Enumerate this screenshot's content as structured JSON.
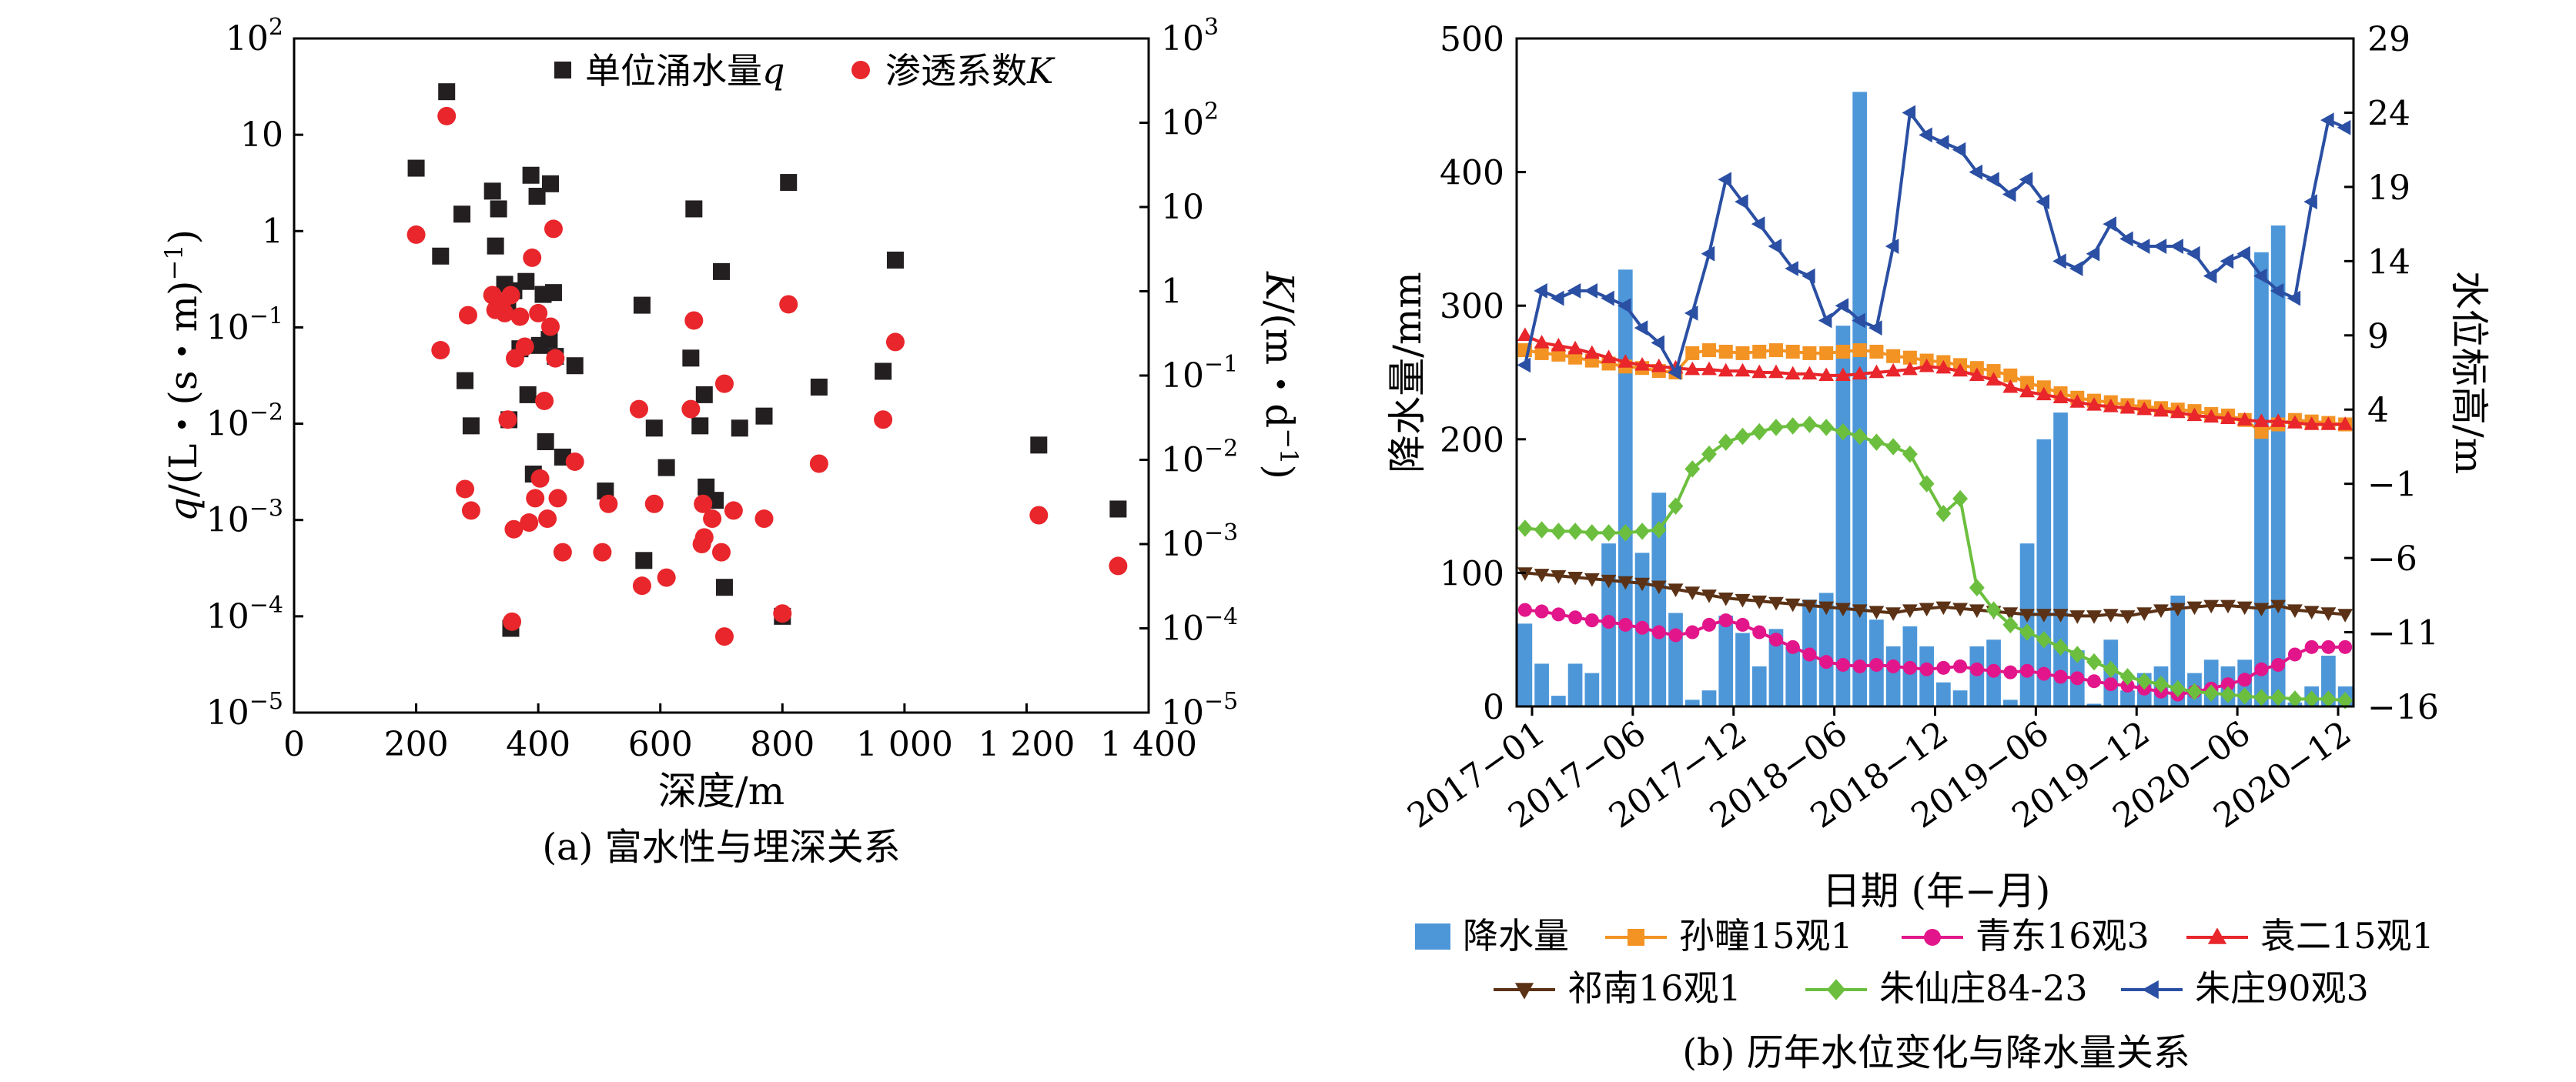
{
  "panels": [
    {
      "caption": "(a) 富水性与埋深关系",
      "legend": [
        {
          "label": "单位涌水量",
          "italic": "q",
          "marker": "square",
          "color": "#231f20"
        },
        {
          "label": "渗透系数",
          "italic": "K",
          "marker": "circle",
          "color": "#e8262b"
        }
      ],
      "xlabel": "深度/m",
      "ylabel_left": {
        "italic": "q",
        "rest": "/(L・(s・m)",
        "sup": "−1",
        "close": ")"
      },
      "ylabel_right": {
        "italic": "K",
        "rest": "/(m・d",
        "sup": "−1",
        "close": ")"
      },
      "x_ticks": [
        "0",
        "200",
        "400",
        "600",
        "800",
        "1 000",
        "1 200",
        "1 400"
      ],
      "y_left_ticks": [
        {
          "base": "10",
          "exp": "−5"
        },
        {
          "base": "10",
          "exp": "−4"
        },
        {
          "base": "10",
          "exp": "−3"
        },
        {
          "base": "10",
          "exp": "−2"
        },
        {
          "base": "10",
          "exp": "−1"
        },
        {
          "base": "1",
          "exp": ""
        },
        {
          "base": "10",
          "exp": ""
        },
        {
          "base": "10",
          "exp": "2"
        }
      ],
      "y_right_ticks": [
        {
          "base": "10",
          "exp": "−5"
        },
        {
          "base": "10",
          "exp": "−4"
        },
        {
          "base": "10",
          "exp": "−3"
        },
        {
          "base": "10",
          "exp": "−2"
        },
        {
          "base": "10",
          "exp": "−1"
        },
        {
          "base": "1",
          "exp": ""
        },
        {
          "base": "10",
          "exp": ""
        },
        {
          "base": "10",
          "exp": "2"
        },
        {
          "base": "10",
          "exp": "3"
        }
      ]
    },
    {
      "caption": "(b) 历年水位变化与降水量关系",
      "xlabel": "日期 (年−月)",
      "ylabel_left": "降水量/mm",
      "ylabel_right": "水位标高/m",
      "x_ticks": [
        "2017−01",
        "2017−06",
        "2017−12",
        "2018−06",
        "2018−12",
        "2019−06",
        "2019−12",
        "2020−06",
        "2020−12"
      ],
      "y_left_ticks": [
        "0",
        "100",
        "200",
        "300",
        "400",
        "500"
      ],
      "y_right_ticks": [
        "−16",
        "−11",
        "−6",
        "−1",
        "4",
        "9",
        "14",
        "19",
        "24",
        "29"
      ],
      "legend": [
        {
          "label": "降水量",
          "marker": "bar",
          "color": "#4d97d9"
        },
        {
          "label": "孙疃15观1",
          "marker": "square",
          "color": "#f39324"
        },
        {
          "label": "青东16观3",
          "marker": "circle",
          "color": "#e2168a"
        },
        {
          "label": "袁二15观1",
          "marker": "triangle-up",
          "color": "#e8262b"
        },
        {
          "label": "祁南16观1",
          "marker": "triangle-down",
          "color": "#5b3216"
        },
        {
          "label": "朱仙庄84-23",
          "marker": "diamond",
          "color": "#6cbf3e"
        },
        {
          "label": "朱庄90观3",
          "marker": "triangle-left",
          "color": "#2a4fa3"
        }
      ]
    }
  ],
  "chart_data": [
    {
      "type": "scatter",
      "xlabel": "深度/m",
      "ylabel": "q/(L・(s・m)−1)",
      "y2label": "K/(m・d−1)",
      "xlim": [
        0,
        1400
      ],
      "ylim": [
        1e-05,
        100
      ],
      "y2lim": [
        1e-05,
        1000
      ],
      "yscale": "log",
      "series": [
        {
          "name": "单位涌水量q",
          "axis": "left",
          "points": [
            [
              200,
              4.5
            ],
            [
              240,
              0.55
            ],
            [
              250,
              28
            ],
            [
              275,
              1.5
            ],
            [
              280,
              0.028
            ],
            [
              290,
              0.0095
            ],
            [
              325,
              2.6
            ],
            [
              330,
              0.7
            ],
            [
              335,
              1.7
            ],
            [
              345,
              0.28
            ],
            [
              350,
              0.16
            ],
            [
              352,
              0.011
            ],
            [
              355,
              7.5e-05
            ],
            [
              360,
              0.24
            ],
            [
              370,
              0.06
            ],
            [
              380,
              0.3
            ],
            [
              383,
              0.02
            ],
            [
              388,
              3.8
            ],
            [
              392,
              0.003
            ],
            [
              398,
              2.3
            ],
            [
              402,
              0.065
            ],
            [
              408,
              0.22
            ],
            [
              412,
              0.0065
            ],
            [
              418,
              0.075
            ],
            [
              420,
              3.1
            ],
            [
              425,
              0.23
            ],
            [
              428,
              0.05
            ],
            [
              440,
              0.0045
            ],
            [
              460,
              0.04
            ],
            [
              510,
              0.002
            ],
            [
              570,
              0.17
            ],
            [
              573,
              0.00038
            ],
            [
              590,
              0.009
            ],
            [
              610,
              0.0035
            ],
            [
              650,
              0.048
            ],
            [
              655,
              1.7
            ],
            [
              665,
              0.0095
            ],
            [
              672,
              0.02
            ],
            [
              675,
              0.0022
            ],
            [
              690,
              0.0016
            ],
            [
              700,
              0.38
            ],
            [
              705,
              0.0002
            ],
            [
              730,
              0.009
            ],
            [
              770,
              0.012
            ],
            [
              800,
              0.0001
            ],
            [
              810,
              3.2
            ],
            [
              860,
              0.024
            ],
            [
              965,
              0.035
            ],
            [
              985,
              0.5
            ],
            [
              1220,
              0.006
            ],
            [
              1350,
              0.0013
            ]
          ]
        },
        {
          "name": "渗透系数K",
          "axis": "right",
          "points": [
            [
              200,
              4.7
            ],
            [
              240,
              0.2
            ],
            [
              250,
              120
            ],
            [
              280,
              0.0045
            ],
            [
              285,
              0.52
            ],
            [
              290,
              0.0025
            ],
            [
              325,
              0.9
            ],
            [
              330,
              0.6
            ],
            [
              340,
              0.7
            ],
            [
              345,
              0.55
            ],
            [
              350,
              0.03
            ],
            [
              355,
              0.9
            ],
            [
              357,
              0.00012
            ],
            [
              360,
              0.0015
            ],
            [
              362,
              0.16
            ],
            [
              370,
              0.5
            ],
            [
              378,
              0.22
            ],
            [
              385,
              0.0018
            ],
            [
              390,
              2.5
            ],
            [
              395,
              0.0035
            ],
            [
              400,
              0.55
            ],
            [
              403,
              0.006
            ],
            [
              410,
              0.05
            ],
            [
              415,
              0.002
            ],
            [
              420,
              0.38
            ],
            [
              425,
              5.5
            ],
            [
              428,
              0.16
            ],
            [
              432,
              0.0035
            ],
            [
              440,
              0.0008
            ],
            [
              460,
              0.0095
            ],
            [
              505,
              0.0008
            ],
            [
              515,
              0.003
            ],
            [
              565,
              0.04
            ],
            [
              570,
              0.00032
            ],
            [
              590,
              0.003
            ],
            [
              610,
              0.0004
            ],
            [
              650,
              0.04
            ],
            [
              655,
              0.45
            ],
            [
              668,
              0.001
            ],
            [
              670,
              0.003
            ],
            [
              672,
              0.0012
            ],
            [
              685,
              0.002
            ],
            [
              700,
              0.0008
            ],
            [
              705,
              0.08
            ],
            [
              705,
              8e-05
            ],
            [
              720,
              0.0025
            ],
            [
              770,
              0.002
            ],
            [
              800,
              0.00015
            ],
            [
              810,
              0.7
            ],
            [
              860,
              0.009
            ],
            [
              965,
              0.03
            ],
            [
              985,
              0.25
            ],
            [
              1220,
              0.0022
            ],
            [
              1350,
              0.00055
            ]
          ]
        }
      ]
    },
    {
      "type": "bar+line",
      "xlabel": "日期 (年−月)",
      "ylabel": "降水量/mm",
      "y2label": "水位标高/m",
      "x_start": "2017-01",
      "x_end": "2020-12",
      "x_ticks": [
        "2017−01",
        "2017−06",
        "2017−12",
        "2018−06",
        "2018−12",
        "2019−06",
        "2019−12",
        "2020−06",
        "2020−12"
      ],
      "ylim": [
        0,
        500
      ],
      "y2lim": [
        -16,
        29
      ],
      "bars": {
        "name": "降水量",
        "values": [
          62,
          32,
          8,
          32,
          25,
          122,
          327,
          115,
          160,
          70,
          5,
          12,
          68,
          55,
          30,
          58,
          45,
          80,
          85,
          285,
          460,
          65,
          45,
          60,
          45,
          18,
          12,
          45,
          50,
          5,
          122,
          200,
          220,
          42,
          2,
          50,
          12,
          25,
          30,
          83,
          25,
          35,
          30,
          35,
          340,
          360,
          3,
          15,
          38,
          15
        ]
      },
      "series": [
        {
          "name": "孙疃15观1",
          "values": [
            8.0,
            7.8,
            7.7,
            7.5,
            7.3,
            7.1,
            6.9,
            6.8,
            6.6,
            6.5,
            7.8,
            8.0,
            7.9,
            7.8,
            7.9,
            8.0,
            7.9,
            7.8,
            7.8,
            7.9,
            8.0,
            7.9,
            7.6,
            7.5,
            7.3,
            7.2,
            7.0,
            6.8,
            6.6,
            6.3,
            5.8,
            5.5,
            5.1,
            4.8,
            4.6,
            4.5,
            4.3,
            4.2,
            4.1,
            4.0,
            3.9,
            3.7,
            3.6,
            3.3,
            2.5,
            3.0,
            3.3,
            3.2,
            3.1,
            3.0
          ]
        },
        {
          "name": "青东16观3",
          "values": [
            -9.5,
            -9.6,
            -9.8,
            -10.0,
            -10.2,
            -10.3,
            -10.5,
            -10.7,
            -11.0,
            -11.2,
            -11.0,
            -10.5,
            -10.2,
            -10.5,
            -11.0,
            -11.5,
            -12.0,
            -12.5,
            -13.0,
            -13.2,
            -13.3,
            -13.2,
            -13.3,
            -13.4,
            -13.5,
            -13.4,
            -13.3,
            -13.5,
            -13.6,
            -13.7,
            -13.6,
            -13.8,
            -14.0,
            -14.1,
            -14.3,
            -14.5,
            -14.6,
            -14.8,
            -15.0,
            -15.2,
            -15.0,
            -14.8,
            -14.5,
            -14.2,
            -13.5,
            -13.2,
            -12.5,
            -12.0,
            -12.0,
            -12.0
          ]
        },
        {
          "name": "袁二15观1",
          "values": [
            9.0,
            8.5,
            8.3,
            8.1,
            7.8,
            7.5,
            7.2,
            7.0,
            6.9,
            6.8,
            6.7,
            6.7,
            6.6,
            6.6,
            6.5,
            6.5,
            6.4,
            6.4,
            6.3,
            6.3,
            6.4,
            6.5,
            6.6,
            6.7,
            6.9,
            6.8,
            6.6,
            6.3,
            6.0,
            5.5,
            5.2,
            5.0,
            4.8,
            4.5,
            4.3,
            4.2,
            4.1,
            4.0,
            3.9,
            3.8,
            3.6,
            3.5,
            3.4,
            3.3,
            3.2,
            3.2,
            3.1,
            3.0,
            3.0,
            3.0
          ]
        },
        {
          "name": "祁南16观1",
          "values": [
            -7.0,
            -7.1,
            -7.2,
            -7.3,
            -7.4,
            -7.5,
            -7.6,
            -7.7,
            -7.9,
            -8.1,
            -8.3,
            -8.5,
            -8.7,
            -8.8,
            -8.9,
            -9.0,
            -9.1,
            -9.2,
            -9.3,
            -9.4,
            -9.5,
            -9.6,
            -9.7,
            -9.5,
            -9.4,
            -9.3,
            -9.4,
            -9.5,
            -9.6,
            -9.7,
            -9.8,
            -9.8,
            -9.8,
            -9.9,
            -9.9,
            -9.8,
            -9.9,
            -9.7,
            -9.5,
            -9.4,
            -9.3,
            -9.2,
            -9.2,
            -9.3,
            -9.4,
            -9.2,
            -9.5,
            -9.6,
            -9.7,
            -9.8
          ]
        },
        {
          "name": "朱仙庄84-23",
          "values": [
            -4.0,
            -4.1,
            -4.2,
            -4.2,
            -4.3,
            -4.3,
            -4.3,
            -4.2,
            -4.1,
            -2.5,
            0.0,
            1.0,
            1.8,
            2.2,
            2.5,
            2.8,
            2.9,
            3.0,
            2.8,
            2.5,
            2.2,
            1.8,
            1.5,
            1.0,
            -1.0,
            -3.0,
            -2.0,
            -8.0,
            -9.5,
            -10.5,
            -11.0,
            -11.5,
            -12.0,
            -12.5,
            -13.0,
            -13.5,
            -14.0,
            -14.3,
            -14.5,
            -14.8,
            -15.0,
            -15.1,
            -15.2,
            -15.3,
            -15.4,
            -15.4,
            -15.5,
            -15.5,
            -15.5,
            -15.6
          ]
        },
        {
          "name": "朱庄90观3",
          "values": [
            7.0,
            12.0,
            11.5,
            12.0,
            12.0,
            11.5,
            11.0,
            9.5,
            8.5,
            6.5,
            10.5,
            14.5,
            19.5,
            18.0,
            16.5,
            15.0,
            13.5,
            13.0,
            10.0,
            11.0,
            10.0,
            9.5,
            15.0,
            24.0,
            22.5,
            22.0,
            21.5,
            20.0,
            19.5,
            18.5,
            19.5,
            18.0,
            14.0,
            13.5,
            14.5,
            16.5,
            15.5,
            15.0,
            15.0,
            15.0,
            14.5,
            13.0,
            14.0,
            14.5,
            13.0,
            12.0,
            11.5,
            18.0,
            23.5,
            23.0
          ]
        }
      ]
    }
  ]
}
